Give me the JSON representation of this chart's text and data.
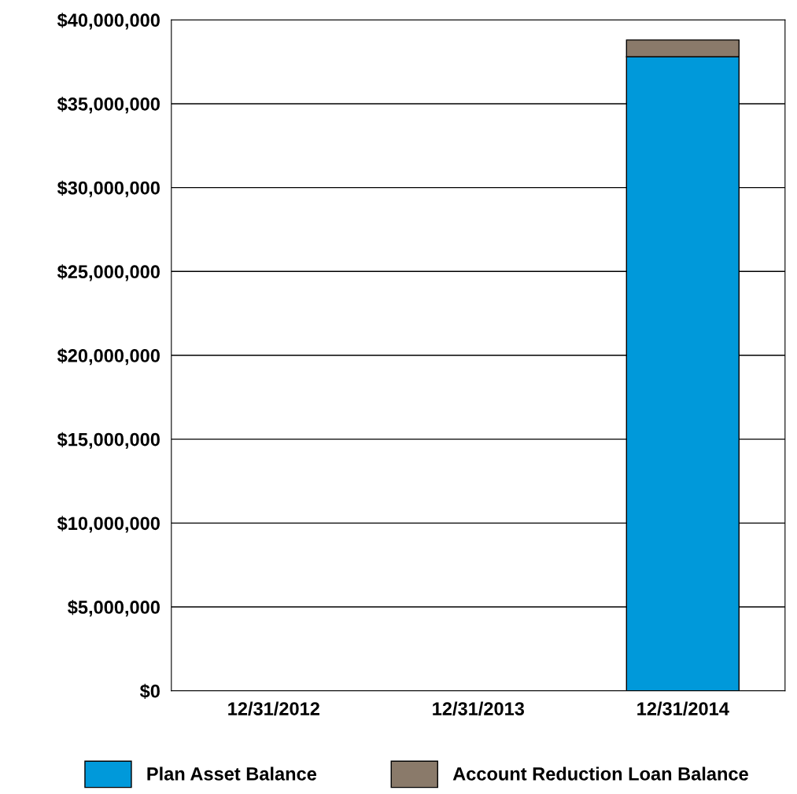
{
  "chart_data": {
    "type": "bar",
    "stacked": true,
    "categories": [
      "12/31/2012",
      "12/31/2013",
      "12/31/2014"
    ],
    "series": [
      {
        "name": "Plan Asset Balance",
        "color": "#0099da",
        "values": [
          null,
          null,
          37800000
        ]
      },
      {
        "name": "Account Reduction Loan Balance",
        "color": "#8a7a6a",
        "values": [
          null,
          null,
          1000000
        ]
      }
    ],
    "ylim": [
      0,
      40000000
    ],
    "yticks": [
      {
        "value": 0,
        "label": "$0"
      },
      {
        "value": 5000000,
        "label": "$5,000,000"
      },
      {
        "value": 10000000,
        "label": "$10,000,000"
      },
      {
        "value": 15000000,
        "label": "$15,000,000"
      },
      {
        "value": 20000000,
        "label": "$20,000,000"
      },
      {
        "value": 25000000,
        "label": "$25,000,000"
      },
      {
        "value": 30000000,
        "label": "$30,000,000"
      },
      {
        "value": 35000000,
        "label": "$35,000,000"
      },
      {
        "value": 40000000,
        "label": "$40,000,000"
      }
    ],
    "grid": "y",
    "legend": "bottom"
  }
}
